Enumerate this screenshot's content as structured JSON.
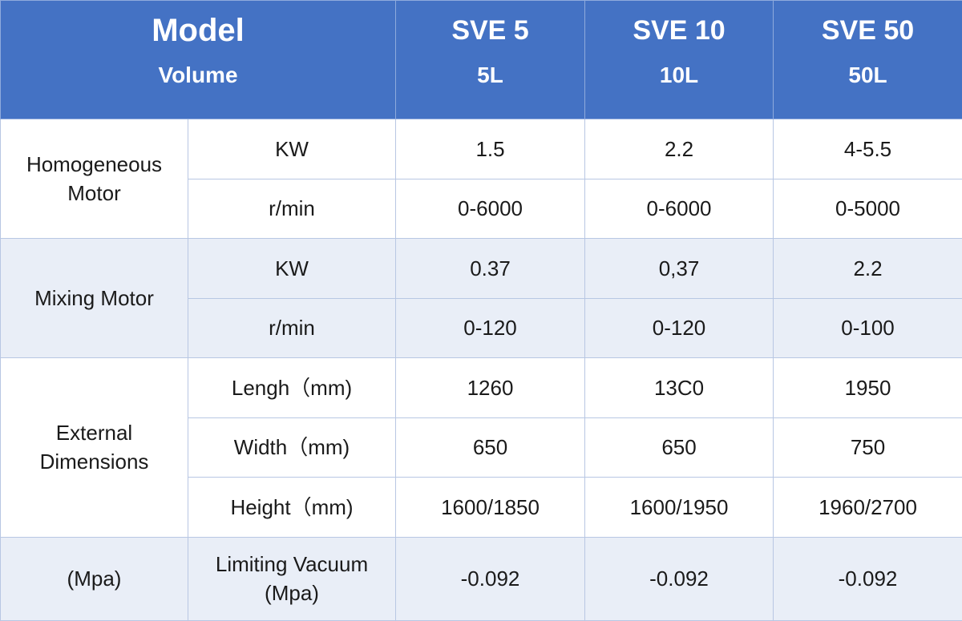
{
  "header": {
    "model_label": "Model",
    "volume_label": "Volume",
    "models": [
      {
        "name": "SVE 5",
        "volume": "5L"
      },
      {
        "name": "SVE 10",
        "volume": "10L"
      },
      {
        "name": "SVE 50",
        "volume": "50L"
      }
    ]
  },
  "groups": [
    {
      "label": "Homogeneous Motor",
      "rows": [
        {
          "param": "KW",
          "values": [
            "1.5",
            "2.2",
            "4-5.5"
          ]
        },
        {
          "param": "r/min",
          "values": [
            "0-6000",
            "0-6000",
            "0-5000"
          ]
        }
      ]
    },
    {
      "label": "Mixing Motor",
      "rows": [
        {
          "param": "KW",
          "values": [
            "0.37",
            "0,37",
            "2.2"
          ]
        },
        {
          "param": "r/min",
          "values": [
            "0-120",
            "0-120",
            "0-100"
          ]
        }
      ]
    },
    {
      "label": "External Dimensions",
      "rows": [
        {
          "param": "Lengh（mm)",
          "values": [
            "1260",
            "13C0",
            "1950"
          ]
        },
        {
          "param": "Width（mm)",
          "values": [
            "650",
            "650",
            "750"
          ]
        },
        {
          "param": "Height（mm)",
          "values": [
            "1600/1850",
            "1600/1950",
            "1960/2700"
          ]
        }
      ]
    },
    {
      "label": "(Mpa)",
      "rows": [
        {
          "param": "Limiting Vacuum (Mpa)",
          "values": [
            "-0.092",
            "-0.092",
            "-0.092"
          ]
        }
      ]
    }
  ],
  "colors": {
    "header_bg": "#4472c4",
    "header_text": "#ffffff",
    "band_blue": "#e9eef7",
    "grid_line": "#b8c7e3"
  }
}
